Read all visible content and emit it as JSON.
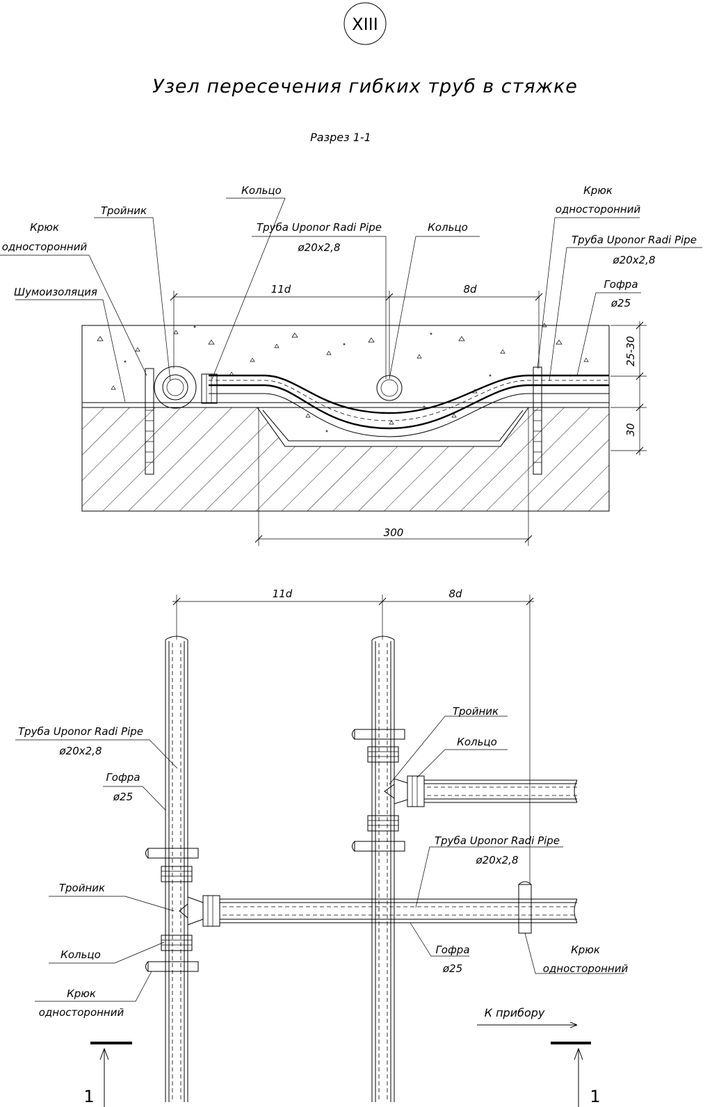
{
  "header": {
    "view_number": "XIII",
    "title": "Узел пересечения гибких труб в стяжке",
    "section_label": "Разрез 1-1"
  },
  "section": {
    "labels": {
      "hook_left": [
        "Крюк",
        "односторонний"
      ],
      "tee": "Тройник",
      "ring_top": "Кольцо",
      "pipe_mid": [
        "Труба Uponor Radi Pipe",
        "ø20x2,8"
      ],
      "ring_mid": "Кольцо",
      "hook_right": [
        "Крюк",
        "односторонний"
      ],
      "pipe_right": [
        "Труба Uponor Radi Pipe",
        "ø20x2,8"
      ],
      "corrugation": [
        "Гофра",
        "ø25"
      ],
      "noise_insulation": "Шумоизоляция"
    },
    "dims": {
      "d11": "11d",
      "d8": "8d",
      "thickness_top": "25-30",
      "thickness_bottom": "30",
      "width": "300"
    }
  },
  "plan": {
    "dims": {
      "d11": "11d",
      "d8": "8d"
    },
    "labels": {
      "pipe_left": [
        "Труба Uponor Radi Pipe",
        "ø20x2,8"
      ],
      "corr_left": [
        "Гофра",
        "ø25"
      ],
      "tee_left": "Тройник",
      "ring_left": "Кольцо",
      "hook_left": [
        "Крюк",
        "односторонний"
      ],
      "tee_right": "Тройник",
      "ring_right": "Кольцо",
      "pipe_right": [
        "Труба Uponor Radi Pipe",
        "ø20x2,8"
      ],
      "corr_right": [
        "Гофра",
        "ø25"
      ],
      "hook_right": [
        "Крюк",
        "односторонний"
      ],
      "to_device": "К прибору"
    },
    "section_marks": {
      "left": "1",
      "right": "1"
    }
  }
}
